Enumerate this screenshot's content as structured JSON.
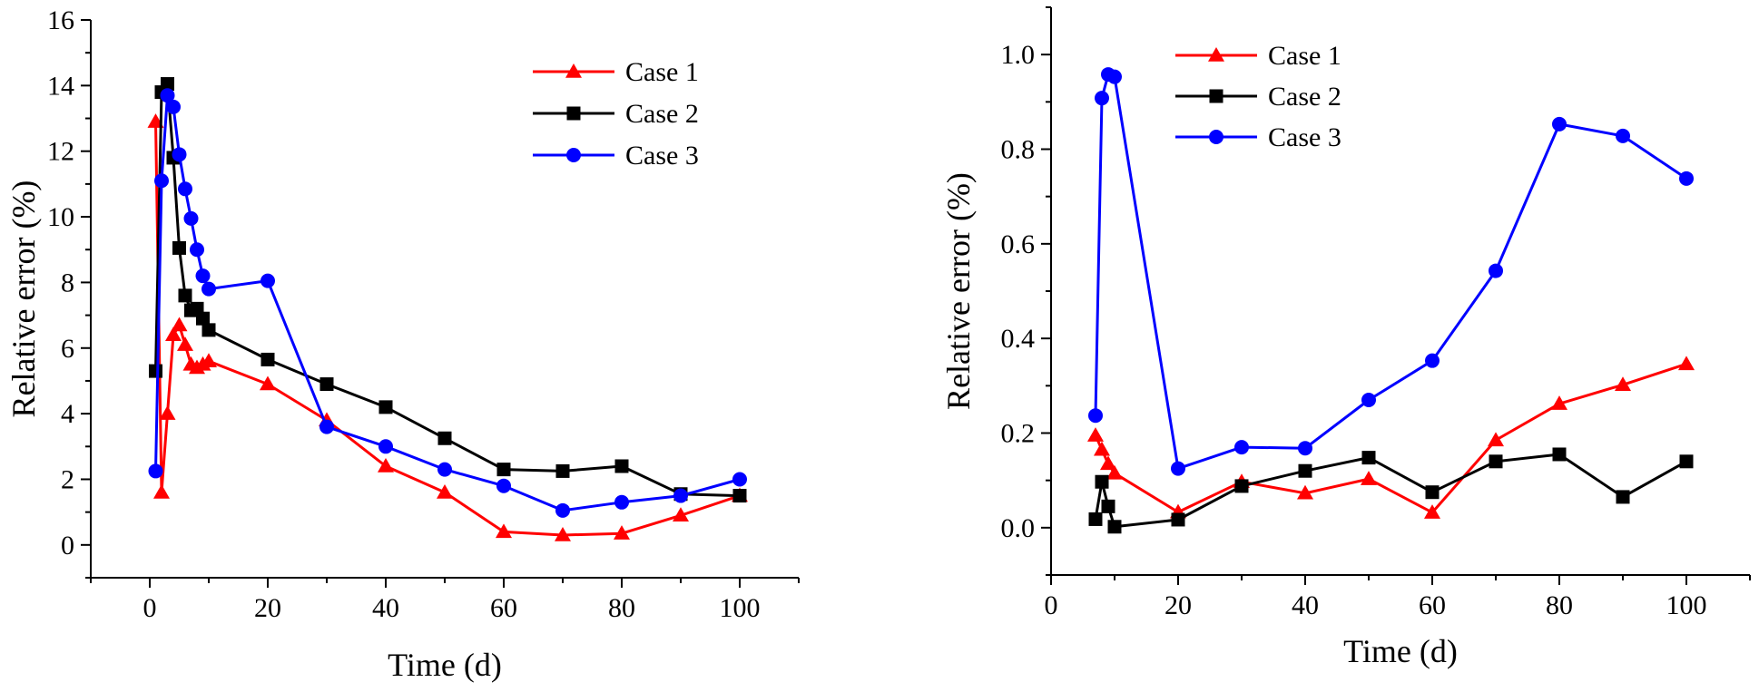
{
  "chart_data": [
    {
      "type": "line",
      "xlabel": "Time (d)",
      "ylabel": "Relative error (%)",
      "xlim": [
        -10,
        110
      ],
      "ylim": [
        -1,
        16
      ],
      "xticks": [
        0,
        20,
        40,
        60,
        80,
        100
      ],
      "yticks": [
        0,
        2,
        4,
        6,
        8,
        10,
        12,
        14,
        16
      ],
      "legend_position": "top-right",
      "series": [
        {
          "name": "Case 1",
          "color": "#ff0000",
          "marker": "triangle",
          "x": [
            1,
            2,
            3,
            4,
            5,
            6,
            7,
            8,
            9,
            10,
            20,
            30,
            40,
            50,
            60,
            70,
            80,
            90,
            100
          ],
          "y": [
            12.9,
            1.6,
            4.0,
            6.4,
            6.7,
            6.1,
            5.5,
            5.4,
            5.5,
            5.6,
            4.9,
            3.8,
            2.4,
            1.6,
            0.4,
            0.3,
            0.35,
            0.9,
            1.5
          ]
        },
        {
          "name": "Case 2",
          "color": "#000000",
          "marker": "square",
          "x": [
            1,
            2,
            3,
            4,
            5,
            6,
            7,
            8,
            9,
            10,
            20,
            30,
            40,
            50,
            60,
            70,
            80,
            90,
            100
          ],
          "y": [
            5.3,
            13.8,
            14.05,
            11.8,
            9.05,
            7.6,
            7.15,
            7.2,
            6.9,
            6.55,
            5.65,
            4.9,
            4.2,
            3.25,
            2.3,
            2.25,
            2.4,
            1.55,
            1.5
          ]
        },
        {
          "name": "Case 3",
          "color": "#0000ff",
          "marker": "circle",
          "x": [
            1,
            2,
            3,
            4,
            5,
            6,
            7,
            8,
            9,
            10,
            20,
            30,
            40,
            50,
            60,
            70,
            80,
            90,
            100
          ],
          "y": [
            2.25,
            11.1,
            13.7,
            13.35,
            11.9,
            10.85,
            9.95,
            9.0,
            8.2,
            7.8,
            8.05,
            3.6,
            3.0,
            2.3,
            1.8,
            1.05,
            1.3,
            1.5,
            2.0
          ]
        }
      ]
    },
    {
      "type": "line",
      "xlabel": "Time (d)",
      "ylabel": "Relative error (%)",
      "xlim": [
        0,
        110
      ],
      "ylim": [
        -0.1,
        1.1
      ],
      "xticks": [
        0,
        20,
        40,
        60,
        80,
        100
      ],
      "yticks": [
        0.0,
        0.2,
        0.4,
        0.6,
        0.8,
        1.0
      ],
      "ytick_labels": [
        "0.0",
        "0.2",
        "0.4",
        "0.6",
        "0.8",
        "1.0"
      ],
      "legend_position": "top-left",
      "series": [
        {
          "name": "Case 1",
          "color": "#ff0000",
          "marker": "triangle",
          "x": [
            7,
            8,
            9,
            10,
            20,
            30,
            40,
            50,
            60,
            70,
            80,
            90,
            100
          ],
          "y": [
            0.195,
            0.165,
            0.135,
            0.115,
            0.033,
            0.097,
            0.073,
            0.103,
            0.032,
            0.185,
            0.262,
            0.302,
            0.346
          ]
        },
        {
          "name": "Case 2",
          "color": "#000000",
          "marker": "square",
          "x": [
            7,
            8,
            9,
            10,
            20,
            30,
            40,
            50,
            60,
            70,
            80,
            90,
            100
          ],
          "y": [
            0.018,
            0.097,
            0.045,
            0.002,
            0.017,
            0.088,
            0.12,
            0.148,
            0.075,
            0.14,
            0.155,
            0.065,
            0.14
          ]
        },
        {
          "name": "Case 3",
          "color": "#0000ff",
          "marker": "circle",
          "x": [
            7,
            8,
            9,
            10,
            20,
            30,
            40,
            50,
            60,
            70,
            80,
            90,
            100
          ],
          "y": [
            0.237,
            0.908,
            0.958,
            0.953,
            0.125,
            0.17,
            0.168,
            0.27,
            0.353,
            0.543,
            0.853,
            0.828,
            0.738
          ]
        }
      ]
    }
  ]
}
